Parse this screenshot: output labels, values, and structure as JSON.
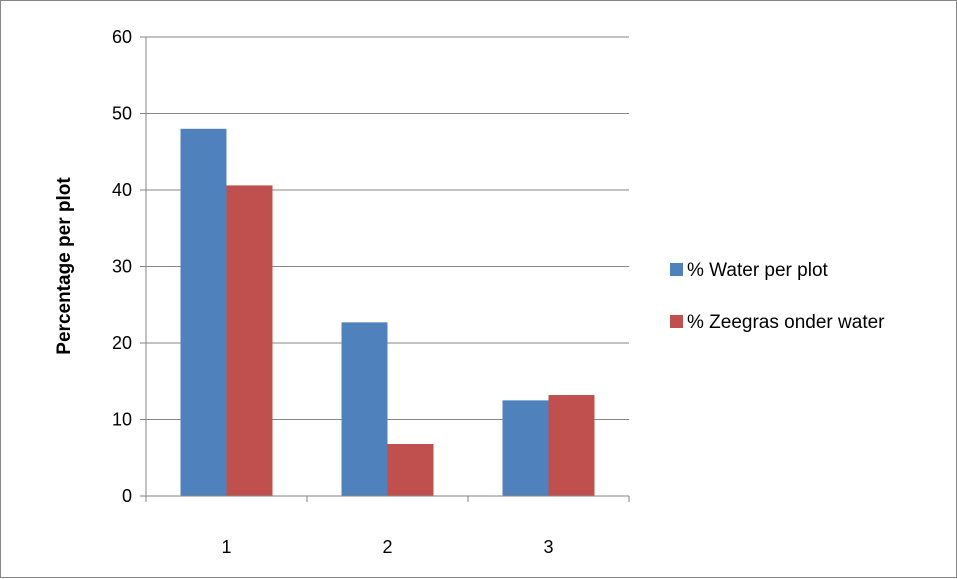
{
  "chart_data": {
    "type": "bar",
    "categories": [
      "1",
      "2",
      "3"
    ],
    "series": [
      {
        "name": "% Water per plot",
        "values": [
          48,
          22.7,
          12.5
        ],
        "color": "#4F81BD"
      },
      {
        "name": "% Zeegras onder water",
        "values": [
          40.6,
          6.8,
          13.2
        ],
        "color": "#C0504D"
      }
    ],
    "ylabel": "Percentage per plot",
    "xlabel": "",
    "ylim": [
      0,
      60
    ],
    "yticks": [
      0,
      10,
      20,
      30,
      40,
      50,
      60
    ],
    "grid": true,
    "legend_position": "right"
  }
}
